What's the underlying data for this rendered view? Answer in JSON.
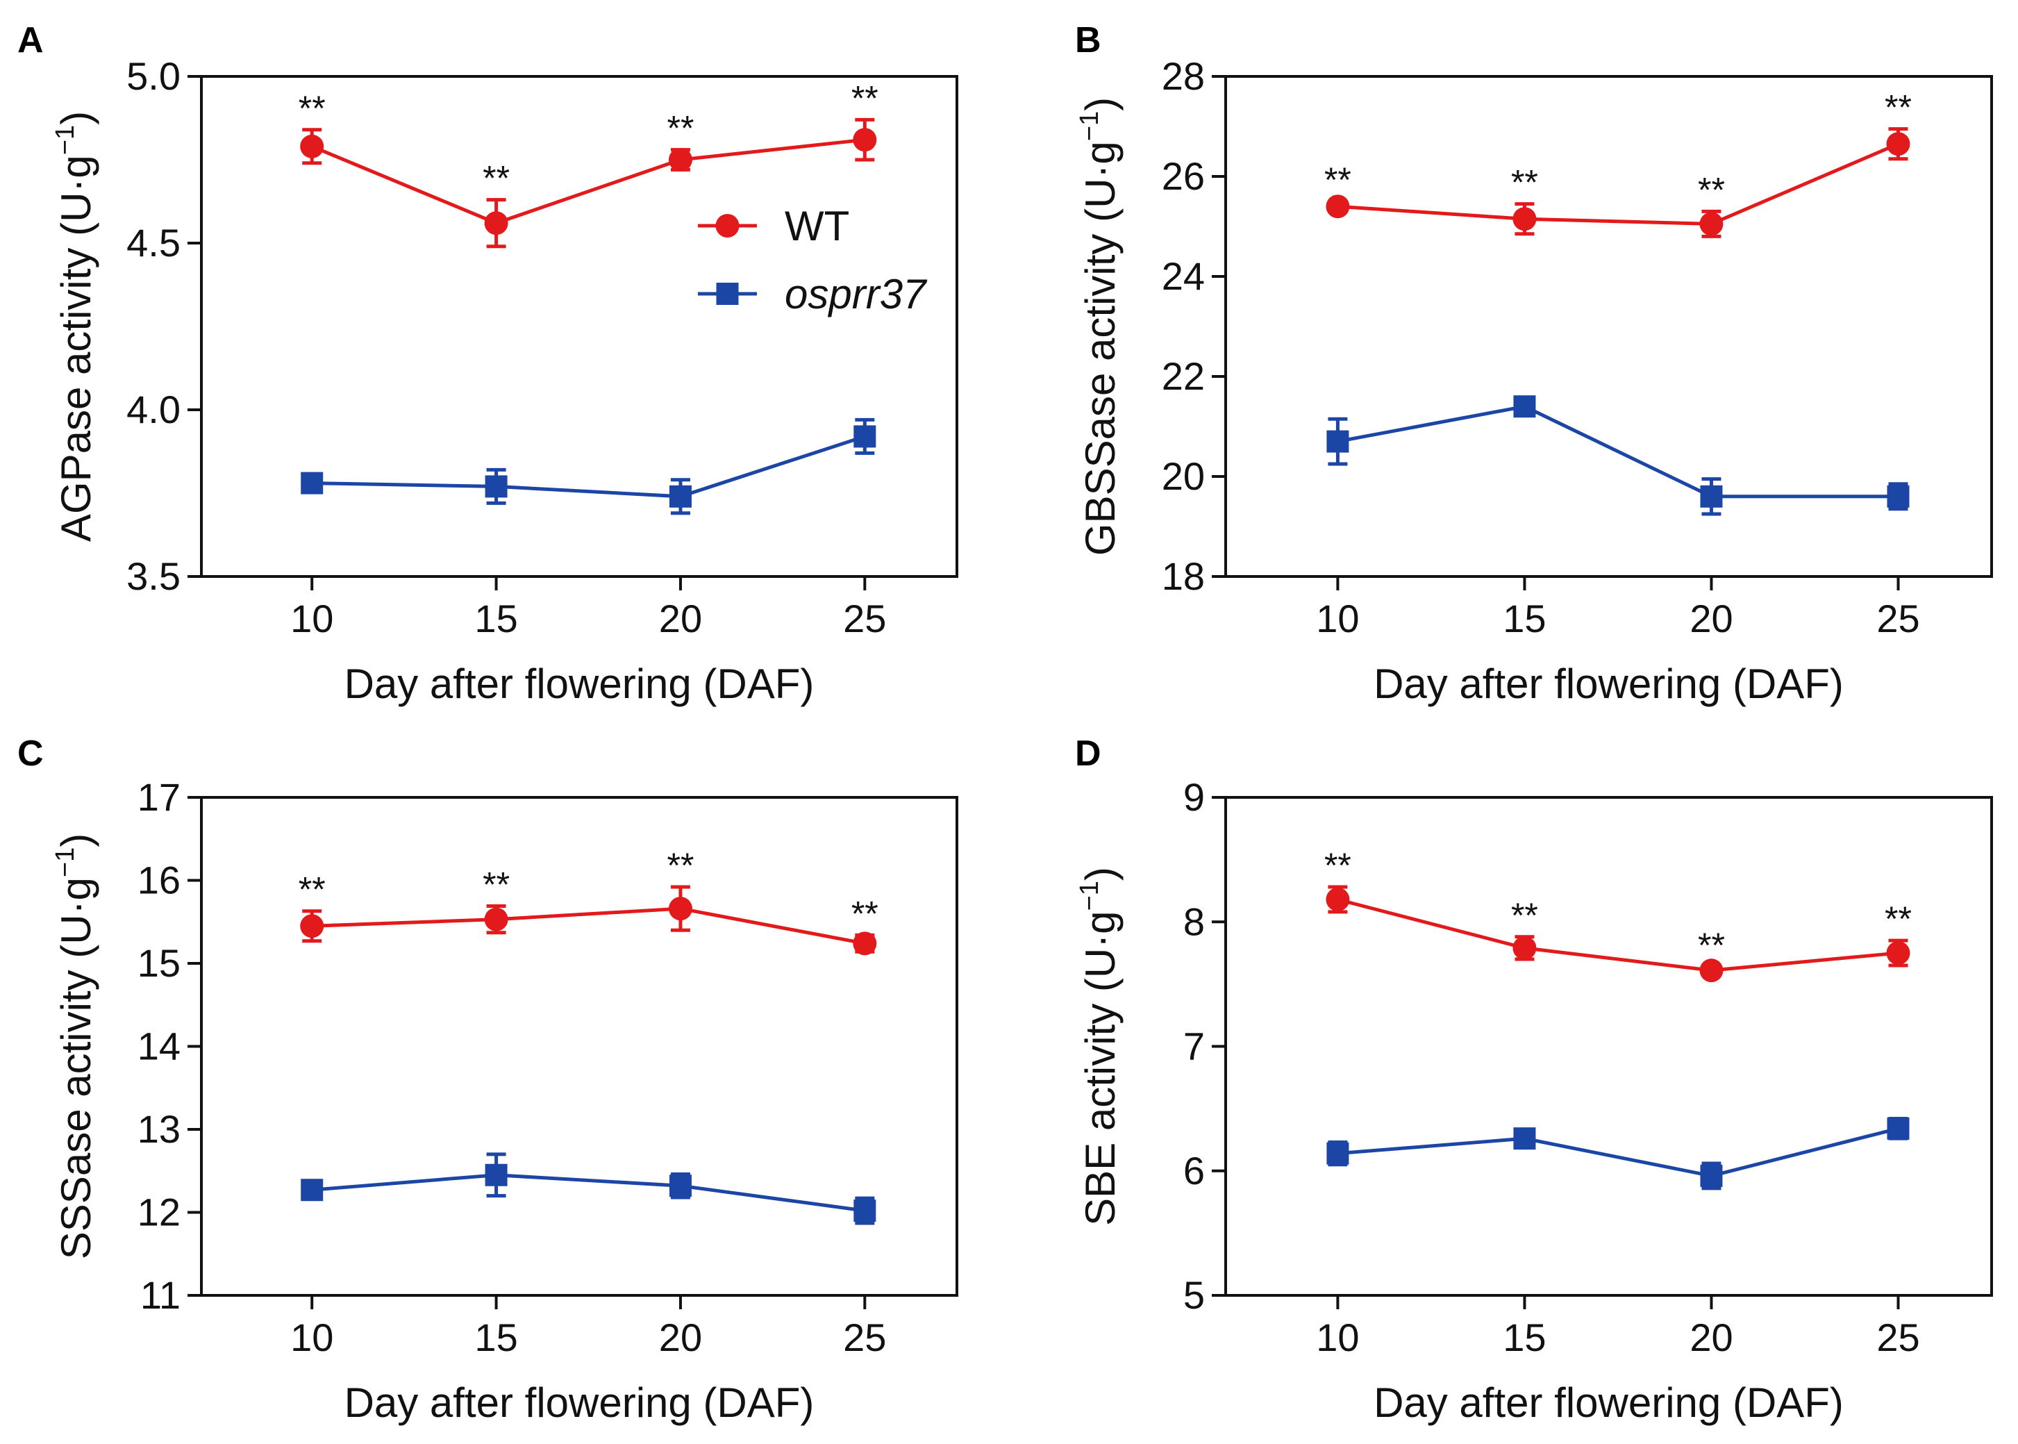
{
  "colors": {
    "wt": "#e31a1c",
    "mutant": "#1c46a6",
    "axis": "#111111"
  },
  "legend": {
    "items": [
      {
        "label": "WT",
        "marker": "circle",
        "color": "#e31a1c",
        "italic": false
      },
      {
        "label": "osprr37",
        "marker": "square",
        "color": "#1c46a6",
        "italic": true
      }
    ]
  },
  "chart_data": [
    {
      "panel": "A",
      "type": "line",
      "xlabel": "Day after flowering (DAF)",
      "ylabel": "AGPase activity (U·g⁻¹)",
      "x": [
        10,
        15,
        20,
        25
      ],
      "xlim": [
        7,
        27.5
      ],
      "ylim": [
        3.5,
        5.0
      ],
      "yticks": [
        3.5,
        4.0,
        4.5,
        5.0
      ],
      "ytick_labels": [
        "3.5",
        "4.0",
        "4.5",
        "5.0"
      ],
      "series": [
        {
          "name": "WT",
          "values": [
            4.79,
            4.56,
            4.75,
            4.81
          ],
          "errors": [
            0.05,
            0.07,
            0.03,
            0.06
          ]
        },
        {
          "name": "osprr37",
          "values": [
            3.78,
            3.77,
            3.74,
            3.92
          ],
          "errors": [
            0.02,
            0.05,
            0.05,
            0.05
          ]
        }
      ],
      "annotations": [
        "**",
        "**",
        "**",
        "**"
      ],
      "legend": true
    },
    {
      "panel": "B",
      "type": "line",
      "xlabel": "Day after flowering (DAF)",
      "ylabel": "GBSSase activity (U·g⁻¹)",
      "x": [
        10,
        15,
        20,
        25
      ],
      "xlim": [
        7,
        27.5
      ],
      "ylim": [
        18,
        28
      ],
      "yticks": [
        18,
        20,
        22,
        24,
        26,
        28
      ],
      "ytick_labels": [
        "18",
        "20",
        "22",
        "24",
        "26",
        "28"
      ],
      "series": [
        {
          "name": "WT",
          "values": [
            25.4,
            25.15,
            25.05,
            26.65
          ],
          "errors": [
            0.1,
            0.3,
            0.25,
            0.3
          ]
        },
        {
          "name": "osprr37",
          "values": [
            20.7,
            21.4,
            19.6,
            19.6
          ],
          "errors": [
            0.45,
            0.15,
            0.35,
            0.25
          ]
        }
      ],
      "annotations": [
        "**",
        "**",
        "**",
        "**"
      ],
      "legend": false
    },
    {
      "panel": "C",
      "type": "line",
      "xlabel": "Day after flowering (DAF)",
      "ylabel": "SSSase activity (U·g⁻¹)",
      "x": [
        10,
        15,
        20,
        25
      ],
      "xlim": [
        7,
        27.5
      ],
      "ylim": [
        11,
        17
      ],
      "yticks": [
        11,
        12,
        13,
        14,
        15,
        16,
        17
      ],
      "ytick_labels": [
        "11",
        "12",
        "13",
        "14",
        "15",
        "16",
        "17"
      ],
      "series": [
        {
          "name": "WT",
          "values": [
            15.45,
            15.53,
            15.66,
            15.24
          ],
          "errors": [
            0.18,
            0.16,
            0.26,
            0.1
          ]
        },
        {
          "name": "osprr37",
          "values": [
            12.27,
            12.45,
            12.32,
            12.02
          ],
          "errors": [
            0.08,
            0.25,
            0.14,
            0.15
          ]
        }
      ],
      "annotations": [
        "**",
        "**",
        "**",
        "**"
      ],
      "legend": false
    },
    {
      "panel": "D",
      "type": "line",
      "xlabel": "Day after flowering (DAF)",
      "ylabel": "SBE activity (U·g⁻¹)",
      "x": [
        10,
        15,
        20,
        25
      ],
      "xlim": [
        7,
        27.5
      ],
      "ylim": [
        5,
        9
      ],
      "yticks": [
        5,
        6,
        7,
        8,
        9
      ],
      "ytick_labels": [
        "5",
        "6",
        "7",
        "8",
        "9"
      ],
      "series": [
        {
          "name": "WT",
          "values": [
            8.18,
            7.79,
            7.61,
            7.75
          ],
          "errors": [
            0.1,
            0.09,
            0.03,
            0.1
          ]
        },
        {
          "name": "osprr37",
          "values": [
            6.14,
            6.26,
            5.96,
            6.34
          ],
          "errors": [
            0.09,
            0.05,
            0.1,
            0.08
          ]
        }
      ],
      "annotations": [
        "**",
        "**",
        "**",
        "**"
      ],
      "legend": false
    }
  ]
}
